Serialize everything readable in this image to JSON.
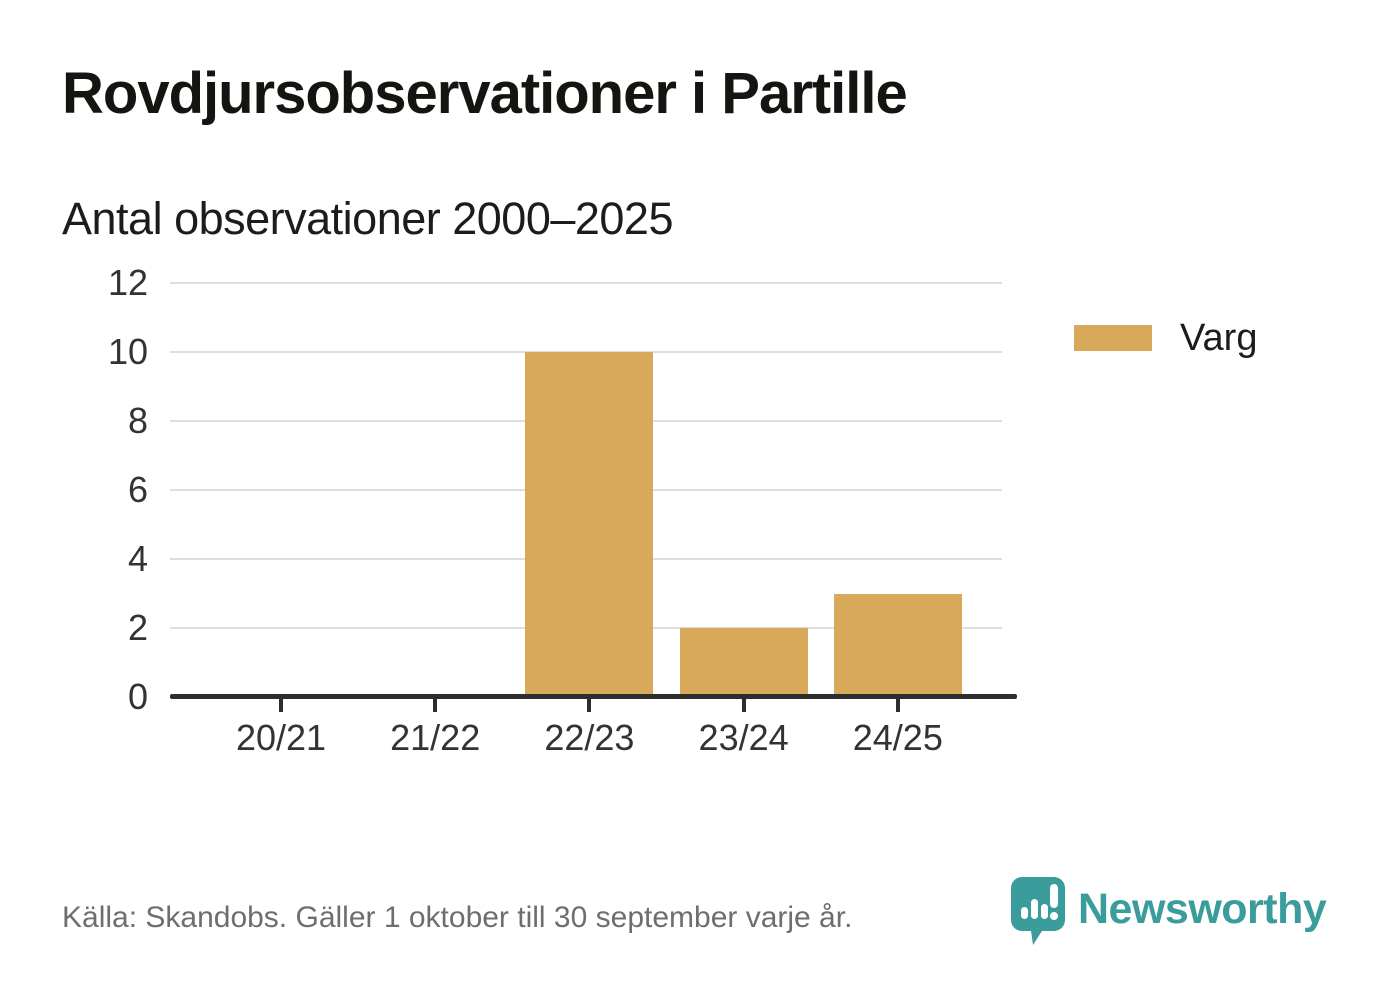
{
  "title": "Rovdjursobservationer i Partille",
  "subtitle": "Antal observationer 2000–2025",
  "legend": {
    "label": "Varg"
  },
  "footer": {
    "source": "Källa: Skandobs. Gäller 1 oktober till 30 september varje år.",
    "brand": "Newsworthy"
  },
  "colors": {
    "gold": "#d8a95a",
    "teal": "#3a9d9b",
    "axis": "#2e2e2e",
    "grid": "#dedede",
    "tick_label": "#333333",
    "source_text": "#6e6e6e"
  },
  "chart_data": {
    "type": "bar",
    "categories": [
      "20/21",
      "21/22",
      "22/23",
      "23/24",
      "24/25"
    ],
    "series": [
      {
        "name": "Varg",
        "values": [
          0,
          0,
          10,
          2,
          3
        ],
        "color": "#d8a95a"
      }
    ],
    "title": "Rovdjursobservationer i Partille",
    "subtitle": "Antal observationer 2000–2025",
    "xlabel": "",
    "ylabel": "",
    "ylim": [
      0,
      12
    ],
    "yticks": [
      0,
      2,
      4,
      6,
      8,
      10,
      12
    ],
    "grid": true,
    "legend_position": "right"
  }
}
